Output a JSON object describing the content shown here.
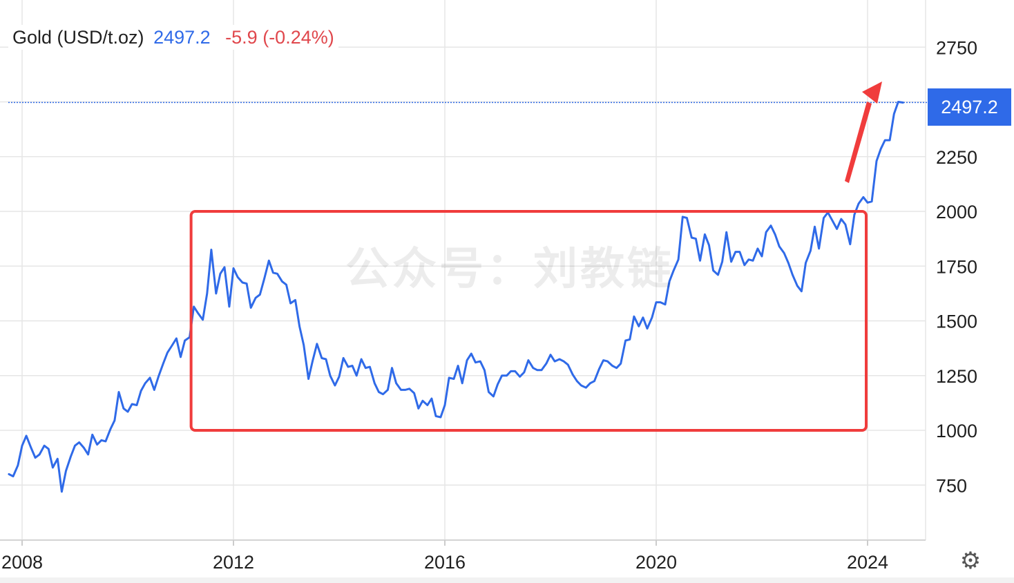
{
  "header": {
    "title": "Gold (USD/t.oz)",
    "price": "2497.2",
    "change": "-5.9 (-0.24%)"
  },
  "watermark": "公众号：刘教链",
  "price_tag": "2497.2",
  "settings_icon": "gear-icon",
  "colors": {
    "line": "#2f6ae8",
    "change_negative": "#e0474c",
    "annotation": "#f03c3c",
    "grid": "#e6e6e6"
  },
  "chart_data": {
    "type": "line",
    "title": "Gold (USD/t.oz)",
    "xlabel": "",
    "ylabel": "",
    "x_ticks": [
      "2008",
      "2012",
      "2016",
      "2020",
      "2024"
    ],
    "y_ticks": [
      750,
      1000,
      1250,
      1500,
      1750,
      2000,
      2250,
      2750
    ],
    "ylim": [
      500,
      2950
    ],
    "xlim": [
      2007.75,
      2025.0
    ],
    "grid": true,
    "last_value": 2497.2,
    "annotations": [
      {
        "type": "rectangle",
        "x_range": [
          2011.25,
          2024.0
        ],
        "y_range": [
          1000,
          2000
        ],
        "color": "#f03c3c"
      },
      {
        "type": "arrow",
        "direction": "up",
        "color": "#f03c3c"
      }
    ],
    "series": [
      {
        "points": [
          [
            2007.75,
            800
          ],
          [
            2007.83,
            790
          ],
          [
            2007.92,
            840
          ],
          [
            2008.0,
            930
          ],
          [
            2008.08,
            975
          ],
          [
            2008.17,
            920
          ],
          [
            2008.25,
            875
          ],
          [
            2008.33,
            890
          ],
          [
            2008.42,
            930
          ],
          [
            2008.5,
            915
          ],
          [
            2008.58,
            830
          ],
          [
            2008.67,
            870
          ],
          [
            2008.75,
            720
          ],
          [
            2008.83,
            815
          ],
          [
            2008.92,
            880
          ],
          [
            2009.0,
            930
          ],
          [
            2009.08,
            945
          ],
          [
            2009.17,
            920
          ],
          [
            2009.25,
            890
          ],
          [
            2009.33,
            980
          ],
          [
            2009.42,
            935
          ],
          [
            2009.5,
            955
          ],
          [
            2009.58,
            950
          ],
          [
            2009.67,
            1005
          ],
          [
            2009.75,
            1045
          ],
          [
            2009.83,
            1175
          ],
          [
            2009.92,
            1100
          ],
          [
            2010.0,
            1085
          ],
          [
            2010.08,
            1120
          ],
          [
            2010.17,
            1115
          ],
          [
            2010.25,
            1180
          ],
          [
            2010.33,
            1215
          ],
          [
            2010.42,
            1240
          ],
          [
            2010.5,
            1185
          ],
          [
            2010.58,
            1245
          ],
          [
            2010.67,
            1305
          ],
          [
            2010.75,
            1355
          ],
          [
            2010.83,
            1385
          ],
          [
            2010.92,
            1420
          ],
          [
            2011.0,
            1335
          ],
          [
            2011.08,
            1410
          ],
          [
            2011.17,
            1425
          ],
          [
            2011.25,
            1565
          ],
          [
            2011.33,
            1535
          ],
          [
            2011.42,
            1505
          ],
          [
            2011.5,
            1625
          ],
          [
            2011.58,
            1825
          ],
          [
            2011.67,
            1625
          ],
          [
            2011.75,
            1715
          ],
          [
            2011.83,
            1745
          ],
          [
            2011.92,
            1565
          ],
          [
            2012.0,
            1740
          ],
          [
            2012.08,
            1700
          ],
          [
            2012.17,
            1675
          ],
          [
            2012.25,
            1670
          ],
          [
            2012.33,
            1560
          ],
          [
            2012.42,
            1605
          ],
          [
            2012.5,
            1620
          ],
          [
            2012.58,
            1690
          ],
          [
            2012.67,
            1775
          ],
          [
            2012.75,
            1720
          ],
          [
            2012.83,
            1715
          ],
          [
            2012.92,
            1680
          ],
          [
            2013.0,
            1665
          ],
          [
            2013.08,
            1580
          ],
          [
            2013.17,
            1595
          ],
          [
            2013.25,
            1475
          ],
          [
            2013.33,
            1390
          ],
          [
            2013.42,
            1235
          ],
          [
            2013.5,
            1320
          ],
          [
            2013.58,
            1395
          ],
          [
            2013.67,
            1330
          ],
          [
            2013.75,
            1325
          ],
          [
            2013.83,
            1250
          ],
          [
            2013.92,
            1205
          ],
          [
            2014.0,
            1245
          ],
          [
            2014.08,
            1330
          ],
          [
            2014.17,
            1290
          ],
          [
            2014.25,
            1295
          ],
          [
            2014.33,
            1250
          ],
          [
            2014.42,
            1325
          ],
          [
            2014.5,
            1285
          ],
          [
            2014.58,
            1290
          ],
          [
            2014.67,
            1215
          ],
          [
            2014.75,
            1175
          ],
          [
            2014.83,
            1165
          ],
          [
            2014.92,
            1185
          ],
          [
            2015.0,
            1285
          ],
          [
            2015.08,
            1215
          ],
          [
            2015.17,
            1185
          ],
          [
            2015.25,
            1185
          ],
          [
            2015.33,
            1190
          ],
          [
            2015.42,
            1170
          ],
          [
            2015.5,
            1100
          ],
          [
            2015.58,
            1135
          ],
          [
            2015.67,
            1115
          ],
          [
            2015.75,
            1145
          ],
          [
            2015.83,
            1065
          ],
          [
            2015.92,
            1060
          ],
          [
            2016.0,
            1115
          ],
          [
            2016.08,
            1240
          ],
          [
            2016.17,
            1235
          ],
          [
            2016.25,
            1295
          ],
          [
            2016.33,
            1215
          ],
          [
            2016.42,
            1320
          ],
          [
            2016.5,
            1350
          ],
          [
            2016.58,
            1310
          ],
          [
            2016.67,
            1315
          ],
          [
            2016.75,
            1275
          ],
          [
            2016.83,
            1175
          ],
          [
            2016.92,
            1155
          ],
          [
            2017.0,
            1210
          ],
          [
            2017.08,
            1250
          ],
          [
            2017.17,
            1250
          ],
          [
            2017.25,
            1270
          ],
          [
            2017.33,
            1270
          ],
          [
            2017.42,
            1245
          ],
          [
            2017.5,
            1265
          ],
          [
            2017.58,
            1320
          ],
          [
            2017.67,
            1285
          ],
          [
            2017.75,
            1275
          ],
          [
            2017.83,
            1275
          ],
          [
            2017.92,
            1305
          ],
          [
            2018.0,
            1345
          ],
          [
            2018.08,
            1315
          ],
          [
            2018.17,
            1325
          ],
          [
            2018.25,
            1315
          ],
          [
            2018.33,
            1300
          ],
          [
            2018.42,
            1255
          ],
          [
            2018.5,
            1225
          ],
          [
            2018.58,
            1205
          ],
          [
            2018.67,
            1195
          ],
          [
            2018.75,
            1215
          ],
          [
            2018.83,
            1225
          ],
          [
            2018.92,
            1280
          ],
          [
            2019.0,
            1320
          ],
          [
            2019.08,
            1315
          ],
          [
            2019.17,
            1295
          ],
          [
            2019.25,
            1285
          ],
          [
            2019.33,
            1305
          ],
          [
            2019.42,
            1410
          ],
          [
            2019.5,
            1415
          ],
          [
            2019.58,
            1520
          ],
          [
            2019.67,
            1475
          ],
          [
            2019.75,
            1515
          ],
          [
            2019.83,
            1465
          ],
          [
            2019.92,
            1515
          ],
          [
            2020.0,
            1585
          ],
          [
            2020.08,
            1585
          ],
          [
            2020.17,
            1575
          ],
          [
            2020.25,
            1680
          ],
          [
            2020.33,
            1730
          ],
          [
            2020.42,
            1780
          ],
          [
            2020.5,
            1975
          ],
          [
            2020.58,
            1970
          ],
          [
            2020.67,
            1880
          ],
          [
            2020.75,
            1875
          ],
          [
            2020.83,
            1775
          ],
          [
            2020.92,
            1895
          ],
          [
            2021.0,
            1845
          ],
          [
            2021.08,
            1730
          ],
          [
            2021.17,
            1710
          ],
          [
            2021.25,
            1770
          ],
          [
            2021.33,
            1905
          ],
          [
            2021.42,
            1770
          ],
          [
            2021.5,
            1815
          ],
          [
            2021.58,
            1815
          ],
          [
            2021.67,
            1755
          ],
          [
            2021.75,
            1780
          ],
          [
            2021.83,
            1775
          ],
          [
            2021.92,
            1830
          ],
          [
            2022.0,
            1795
          ],
          [
            2022.08,
            1905
          ],
          [
            2022.17,
            1935
          ],
          [
            2022.25,
            1895
          ],
          [
            2022.33,
            1840
          ],
          [
            2022.42,
            1810
          ],
          [
            2022.5,
            1765
          ],
          [
            2022.58,
            1710
          ],
          [
            2022.67,
            1660
          ],
          [
            2022.75,
            1635
          ],
          [
            2022.83,
            1765
          ],
          [
            2022.92,
            1820
          ],
          [
            2023.0,
            1930
          ],
          [
            2023.08,
            1830
          ],
          [
            2023.17,
            1970
          ],
          [
            2023.25,
            1995
          ],
          [
            2023.33,
            1960
          ],
          [
            2023.42,
            1920
          ],
          [
            2023.5,
            1965
          ],
          [
            2023.58,
            1940
          ],
          [
            2023.67,
            1850
          ],
          [
            2023.75,
            1985
          ],
          [
            2023.83,
            2035
          ],
          [
            2023.92,
            2065
          ],
          [
            2024.0,
            2040
          ],
          [
            2024.08,
            2045
          ],
          [
            2024.17,
            2230
          ],
          [
            2024.25,
            2285
          ],
          [
            2024.33,
            2325
          ],
          [
            2024.42,
            2325
          ],
          [
            2024.5,
            2445
          ],
          [
            2024.58,
            2500
          ],
          [
            2024.67,
            2497
          ]
        ]
      }
    ]
  }
}
